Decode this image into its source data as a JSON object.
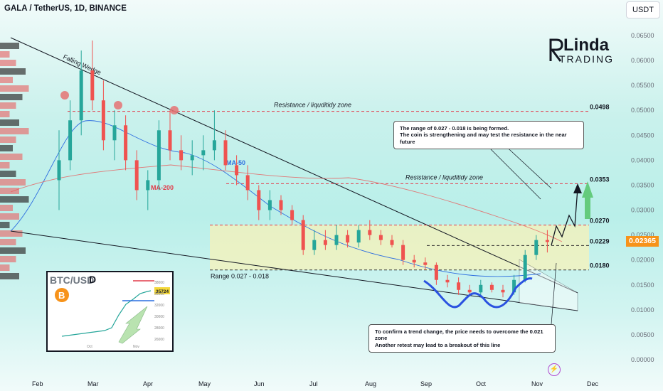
{
  "header": {
    "symbol_title": "GALA / TetherUS, 1D, BINANCE",
    "currency_button": "USDT"
  },
  "price_tag": {
    "value": "0.02365",
    "color": "#f7931a"
  },
  "logo": {
    "name": "Linda",
    "subtitle": "TRADING"
  },
  "callouts": {
    "top": {
      "line1": "The range of 0.027 - 0.018 is being formed.",
      "line2": "The coin is strengthening and may test the resistance in the near future"
    },
    "bottom": {
      "line1": "To confirm a trend change, the price needs to overcome the 0.021 zone",
      "line2": "Another retest may lead to a breakout of this line"
    }
  },
  "inset": {
    "title": "BTC/USD",
    "interval": "D",
    "price_label": "35724",
    "y_ticks": [
      "38000",
      "36000",
      "32000",
      "30000",
      "28000",
      "26000"
    ],
    "x_ticks": [
      "Oct",
      "Nov"
    ]
  },
  "chart_data": {
    "type": "candlestick",
    "symbol": "GALA / TetherUS",
    "interval": "1D",
    "exchange": "BINANCE",
    "x_ticks": [
      "Feb",
      "Mar",
      "Apr",
      "May",
      "Jun",
      "Jul",
      "Aug",
      "Sep",
      "Oct",
      "Nov",
      "Dec"
    ],
    "y_ticks": [
      "0.06500",
      "0.06000",
      "0.05500",
      "0.05000",
      "0.04500",
      "0.04000",
      "0.03500",
      "0.03000",
      "0.02500",
      "0.02000",
      "0.01500",
      "0.01000",
      "0.00500",
      "0.00000"
    ],
    "ylim": [
      0.0,
      0.068
    ],
    "current_price": 0.02365,
    "levels": [
      {
        "value": 0.0498,
        "label": "0.0498",
        "caption": "Resistance / liquditidy zone",
        "color": "#e23b4a",
        "style": "dashed"
      },
      {
        "value": 0.0353,
        "label": "0.0353",
        "caption": "Resistance / liquditidy zone",
        "color": "#e23b4a",
        "style": "dashed"
      },
      {
        "value": 0.027,
        "label": "0.0270",
        "color": "#e23b4a",
        "style": "dashed"
      },
      {
        "value": 0.0229,
        "label": "0.0229",
        "color": "#333333",
        "style": "dashed"
      },
      {
        "value": 0.018,
        "label": "0.0180",
        "color": "#333333",
        "style": "dashed"
      }
    ],
    "range_box": {
      "from": 0.018,
      "to": 0.027,
      "label": "Range 0.027 - 0.018",
      "color": "#f7f1b8"
    },
    "annotations": [
      "Falling Wedge",
      "MA-50",
      "MA-200"
    ],
    "series": [
      {
        "name": "MA-50",
        "color": "#2f6fe0"
      },
      {
        "name": "MA-200",
        "color": "#e85a5a"
      }
    ],
    "candles": [
      {
        "x": 0.0,
        "o": 0.036,
        "h": 0.046,
        "l": 0.03,
        "c": 0.04
      },
      {
        "x": 0.2,
        "o": 0.04,
        "h": 0.052,
        "l": 0.038,
        "c": 0.048
      },
      {
        "x": 0.4,
        "o": 0.048,
        "h": 0.062,
        "l": 0.045,
        "c": 0.058
      },
      {
        "x": 0.6,
        "o": 0.058,
        "h": 0.064,
        "l": 0.05,
        "c": 0.052
      },
      {
        "x": 0.8,
        "o": 0.052,
        "h": 0.056,
        "l": 0.042,
        "c": 0.044
      },
      {
        "x": 1.0,
        "o": 0.044,
        "h": 0.05,
        "l": 0.04,
        "c": 0.047
      },
      {
        "x": 1.2,
        "o": 0.047,
        "h": 0.049,
        "l": 0.038,
        "c": 0.04
      },
      {
        "x": 1.4,
        "o": 0.04,
        "h": 0.042,
        "l": 0.032,
        "c": 0.034
      },
      {
        "x": 1.6,
        "o": 0.034,
        "h": 0.038,
        "l": 0.03,
        "c": 0.036
      },
      {
        "x": 1.8,
        "o": 0.036,
        "h": 0.048,
        "l": 0.034,
        "c": 0.046
      },
      {
        "x": 2.0,
        "o": 0.046,
        "h": 0.05,
        "l": 0.04,
        "c": 0.042
      },
      {
        "x": 2.2,
        "o": 0.042,
        "h": 0.045,
        "l": 0.038,
        "c": 0.04
      },
      {
        "x": 2.4,
        "o": 0.04,
        "h": 0.044,
        "l": 0.037,
        "c": 0.041
      },
      {
        "x": 2.6,
        "o": 0.041,
        "h": 0.045,
        "l": 0.038,
        "c": 0.042
      },
      {
        "x": 2.8,
        "o": 0.042,
        "h": 0.05,
        "l": 0.04,
        "c": 0.044
      },
      {
        "x": 3.0,
        "o": 0.044,
        "h": 0.046,
        "l": 0.038,
        "c": 0.039
      },
      {
        "x": 3.2,
        "o": 0.039,
        "h": 0.041,
        "l": 0.035,
        "c": 0.037
      },
      {
        "x": 3.4,
        "o": 0.037,
        "h": 0.039,
        "l": 0.032,
        "c": 0.034
      },
      {
        "x": 3.6,
        "o": 0.034,
        "h": 0.035,
        "l": 0.028,
        "c": 0.03
      },
      {
        "x": 3.8,
        "o": 0.03,
        "h": 0.034,
        "l": 0.028,
        "c": 0.032
      },
      {
        "x": 4.0,
        "o": 0.032,
        "h": 0.033,
        "l": 0.029,
        "c": 0.03
      },
      {
        "x": 4.2,
        "o": 0.03,
        "h": 0.031,
        "l": 0.027,
        "c": 0.028
      },
      {
        "x": 4.4,
        "o": 0.028,
        "h": 0.029,
        "l": 0.021,
        "c": 0.022
      },
      {
        "x": 4.6,
        "o": 0.022,
        "h": 0.026,
        "l": 0.021,
        "c": 0.024
      },
      {
        "x": 4.8,
        "o": 0.024,
        "h": 0.026,
        "l": 0.022,
        "c": 0.023
      },
      {
        "x": 5.0,
        "o": 0.023,
        "h": 0.027,
        "l": 0.022,
        "c": 0.025
      },
      {
        "x": 5.2,
        "o": 0.025,
        "h": 0.026,
        "l": 0.0225,
        "c": 0.0235
      },
      {
        "x": 5.4,
        "o": 0.0235,
        "h": 0.027,
        "l": 0.0225,
        "c": 0.026
      },
      {
        "x": 5.6,
        "o": 0.026,
        "h": 0.028,
        "l": 0.024,
        "c": 0.025
      },
      {
        "x": 5.8,
        "o": 0.025,
        "h": 0.026,
        "l": 0.023,
        "c": 0.024
      },
      {
        "x": 6.0,
        "o": 0.024,
        "h": 0.025,
        "l": 0.0225,
        "c": 0.023
      },
      {
        "x": 6.2,
        "o": 0.023,
        "h": 0.024,
        "l": 0.019,
        "c": 0.02
      },
      {
        "x": 6.4,
        "o": 0.02,
        "h": 0.021,
        "l": 0.0185,
        "c": 0.0195
      },
      {
        "x": 6.6,
        "o": 0.0195,
        "h": 0.0205,
        "l": 0.018,
        "c": 0.019
      },
      {
        "x": 6.8,
        "o": 0.019,
        "h": 0.0195,
        "l": 0.015,
        "c": 0.016
      },
      {
        "x": 7.0,
        "o": 0.016,
        "h": 0.017,
        "l": 0.0145,
        "c": 0.0155
      },
      {
        "x": 7.2,
        "o": 0.0155,
        "h": 0.0165,
        "l": 0.013,
        "c": 0.014
      },
      {
        "x": 7.4,
        "o": 0.014,
        "h": 0.015,
        "l": 0.013,
        "c": 0.0135
      },
      {
        "x": 7.6,
        "o": 0.0135,
        "h": 0.016,
        "l": 0.013,
        "c": 0.015
      },
      {
        "x": 7.8,
        "o": 0.015,
        "h": 0.0155,
        "l": 0.0135,
        "c": 0.014
      },
      {
        "x": 8.0,
        "o": 0.014,
        "h": 0.015,
        "l": 0.0125,
        "c": 0.0135
      },
      {
        "x": 8.2,
        "o": 0.0135,
        "h": 0.017,
        "l": 0.013,
        "c": 0.016
      },
      {
        "x": 8.4,
        "o": 0.016,
        "h": 0.022,
        "l": 0.0155,
        "c": 0.021
      },
      {
        "x": 8.6,
        "o": 0.021,
        "h": 0.025,
        "l": 0.02,
        "c": 0.024
      },
      {
        "x": 8.8,
        "o": 0.024,
        "h": 0.026,
        "l": 0.0215,
        "c": 0.0236
      }
    ]
  }
}
